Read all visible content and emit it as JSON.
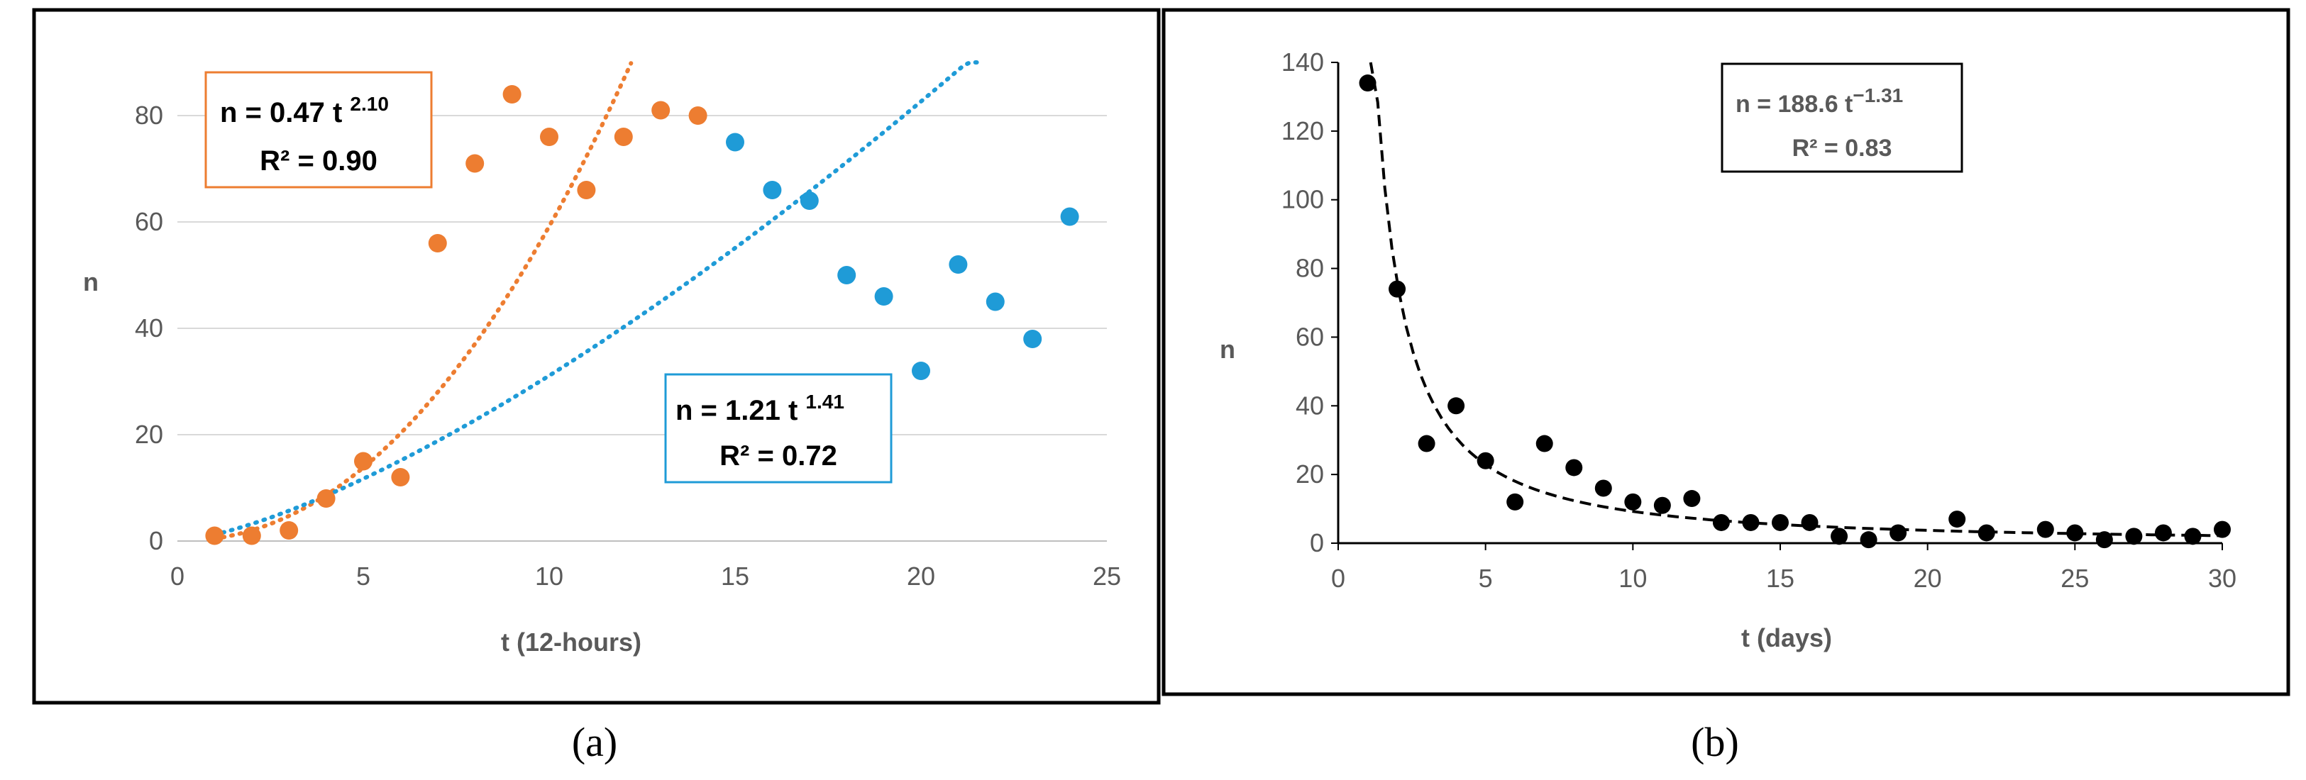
{
  "panel_labels": [
    "(a)",
    "(b)"
  ],
  "chart_data": [
    {
      "type": "scatter",
      "xlabel": "t (12-hours)",
      "ylabel": "n",
      "xlim": [
        0,
        25
      ],
      "ylim": [
        0,
        90
      ],
      "xticks": [
        "0",
        "5",
        "10",
        "15",
        "20",
        "25"
      ],
      "yticks": [
        "0",
        "20",
        "40",
        "60",
        "80"
      ],
      "grid": "horizontal",
      "series": [
        {
          "color": "#ED7D31",
          "x": [
            1,
            2,
            3,
            4,
            5,
            6,
            7,
            8,
            9,
            10,
            11,
            12,
            13,
            14
          ],
          "y": [
            1,
            1,
            2,
            8,
            15,
            12,
            56,
            71,
            84,
            76,
            66,
            76,
            81,
            80
          ],
          "trendline": {
            "a": 0.47,
            "b": 2.1,
            "x_range": [
              1,
              12.2
            ]
          }
        },
        {
          "color": "#1F9BD7",
          "x": [
            15,
            16,
            17,
            18,
            19,
            20,
            21,
            22,
            23,
            24
          ],
          "y": [
            75,
            66,
            64,
            50,
            46,
            32,
            52,
            45,
            38,
            61
          ],
          "trendline": {
            "a": 1.21,
            "b": 1.41,
            "x_range": [
              1,
              21.5
            ]
          }
        }
      ],
      "annotations": [
        {
          "base": "n = 0.47 t ",
          "exp": "2.10",
          "r2": "R² = 0.90",
          "border": "#ED7D31"
        },
        {
          "base": "n = 1.21 t ",
          "exp": "1.41",
          "r2": "R² = 0.72",
          "border": "#1F9BD7"
        }
      ]
    },
    {
      "type": "scatter",
      "xlabel": "t (days)",
      "ylabel": "n",
      "xlim": [
        0,
        30
      ],
      "ylim": [
        0,
        140
      ],
      "xticks": [
        "0",
        "5",
        "10",
        "15",
        "20",
        "25",
        "30"
      ],
      "yticks": [
        "0",
        "20",
        "40",
        "60",
        "80",
        "100",
        "120",
        "140"
      ],
      "grid": "none",
      "series": [
        {
          "color": "#000000",
          "x": [
            1,
            2,
            3,
            4,
            5,
            6,
            7,
            8,
            9,
            10,
            11,
            12,
            13,
            14,
            15,
            16,
            17,
            18,
            19,
            21,
            22,
            24,
            25,
            26,
            27,
            28,
            29,
            30
          ],
          "y": [
            134,
            74,
            29,
            40,
            24,
            12,
            29,
            22,
            16,
            12,
            11,
            13,
            6,
            6,
            6,
            6,
            2,
            1,
            3,
            7,
            3,
            4,
            3,
            1,
            2,
            3,
            2,
            4
          ],
          "trendline": {
            "a": 188.6,
            "b": -1.31,
            "x_range": [
              1.1,
              30
            ]
          }
        }
      ],
      "annotations": [
        {
          "base": "n = 188.6 t",
          "exp": "−1.31",
          "r2": "R² = 0.83",
          "border": "#000000"
        }
      ]
    }
  ]
}
